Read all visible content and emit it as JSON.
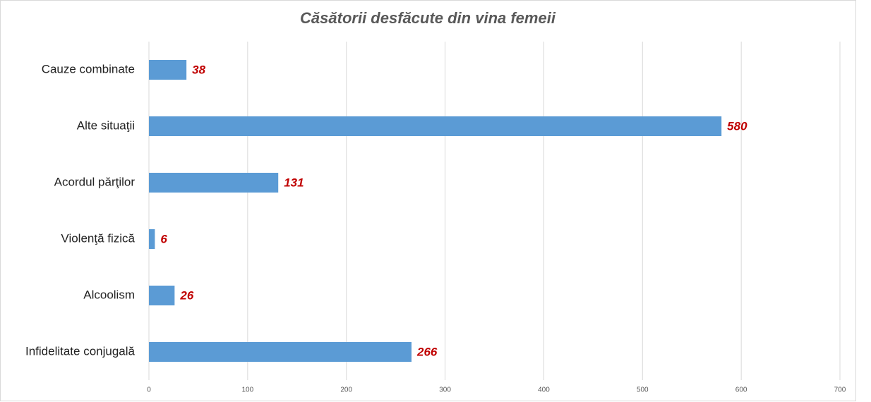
{
  "chart_data": {
    "type": "barh",
    "title": "Căsătorii desfăcute din vina femeii",
    "categories": [
      "Cauze combinate",
      "Alte situaţii",
      "Acordul părţilor",
      "Violenţă fizică",
      "Alcoolism",
      "Infidelitate conjugală"
    ],
    "values": [
      38,
      580,
      131,
      6,
      26,
      266
    ],
    "color": "#5b9bd5",
    "label_color": "#c00000",
    "xlim": [
      0,
      700
    ],
    "xticks": [
      0,
      100,
      200,
      300,
      400,
      500,
      600,
      700
    ],
    "grid": true
  }
}
